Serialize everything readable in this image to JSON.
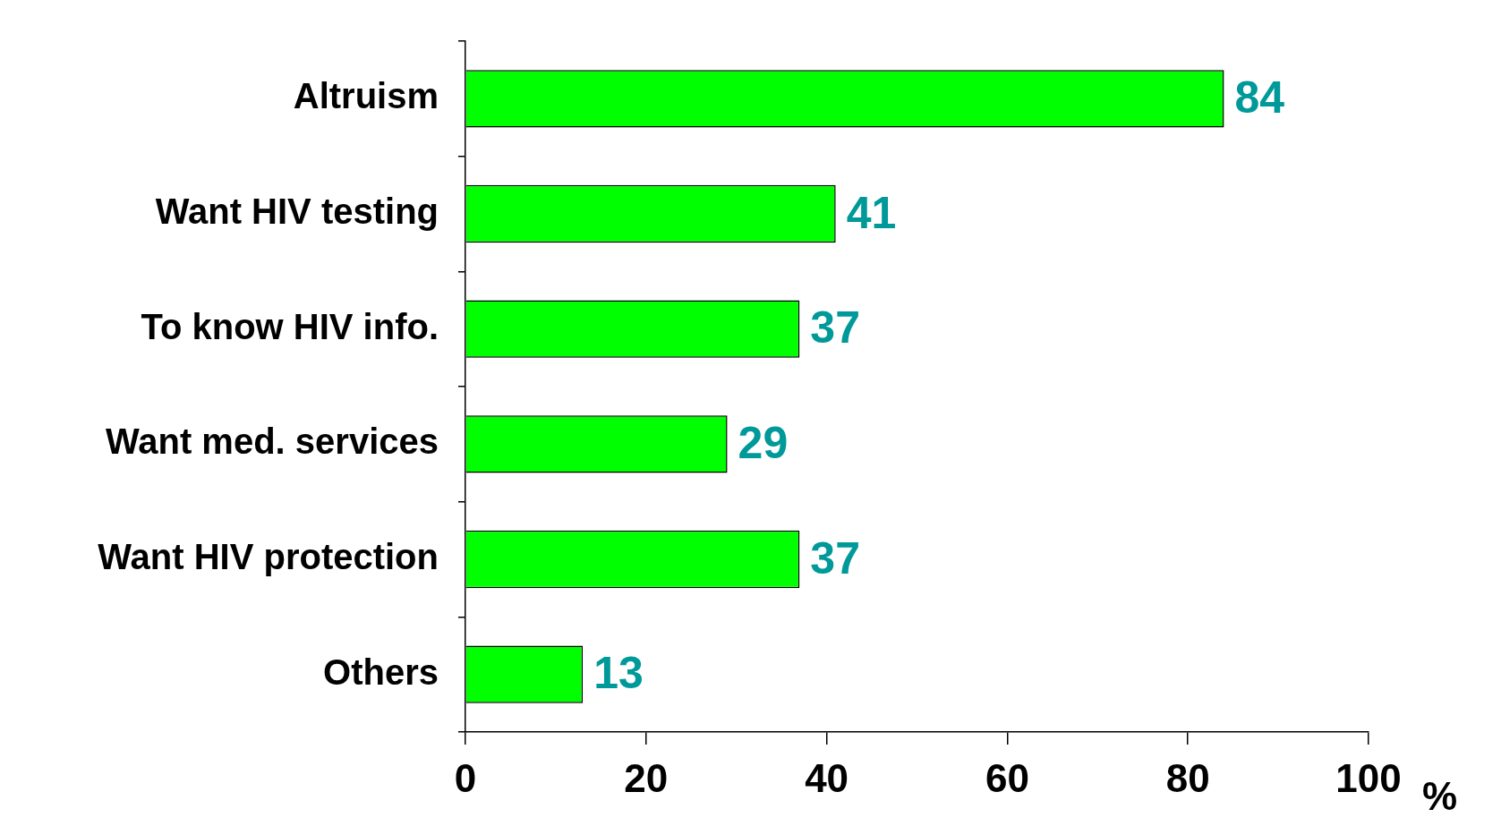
{
  "chart_data": {
    "type": "bar",
    "orientation": "horizontal",
    "xlabel": "%",
    "categories": [
      "Altruism",
      "Want HIV testing",
      "To know HIV info.",
      "Want med. services",
      "Want HIV protection",
      "Others"
    ],
    "values": [
      84,
      41,
      37,
      29,
      37,
      13
    ],
    "color": "#00ff00",
    "xlim": [
      0,
      100
    ],
    "xticks": [
      0,
      20,
      40,
      60,
      80,
      100
    ],
    "grid": false,
    "data_labels": true
  }
}
